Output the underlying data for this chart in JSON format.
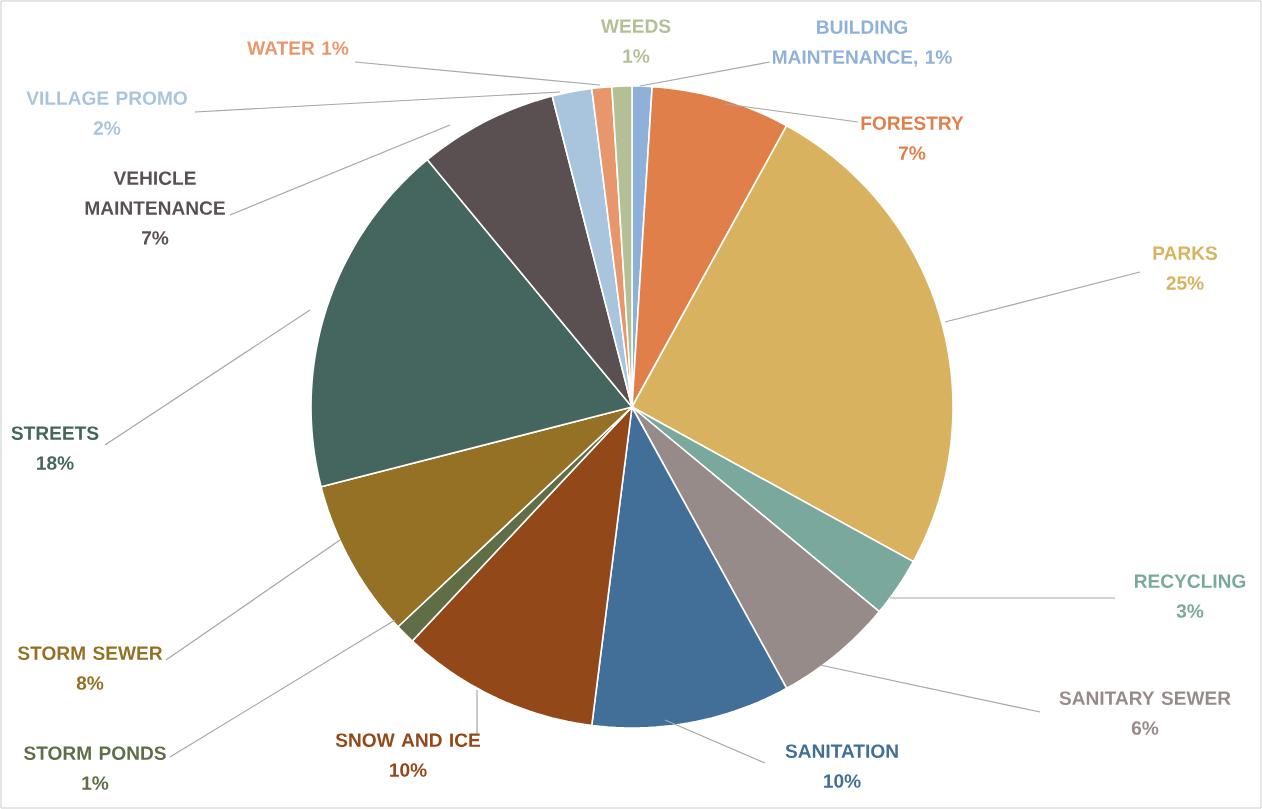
{
  "chart_data": {
    "type": "pie",
    "categories": [
      "BUILDING MAINTENANCE",
      "FORESTRY",
      "PARKS",
      "RECYCLING",
      "SANITARY SEWER",
      "SANITATION",
      "SNOW AND ICE",
      "STORM PONDS",
      "STORM SEWER",
      "STREETS",
      "VEHICLE MAINTENANCE",
      "VILLAGE PROMO",
      "WATER",
      "WEEDS"
    ],
    "values": [
      1,
      7,
      25,
      3,
      6,
      10,
      10,
      1,
      8,
      18,
      7,
      2,
      1,
      1
    ],
    "value_labels": [
      ", 1%",
      "7%",
      "25%",
      "3%",
      "6%",
      "10%",
      "10%",
      "1%",
      "8%",
      "18%",
      "7%",
      "2%",
      "1%",
      "1%"
    ],
    "colors": [
      "#8fb1d9",
      "#e07f4a",
      "#d8b25e",
      "#7aa89c",
      "#978b89",
      "#416f98",
      "#934819",
      "#5f6e47",
      "#957125",
      "#45665e",
      "#5b5051",
      "#a9c5de",
      "#e8966c",
      "#b4bf95"
    ]
  }
}
